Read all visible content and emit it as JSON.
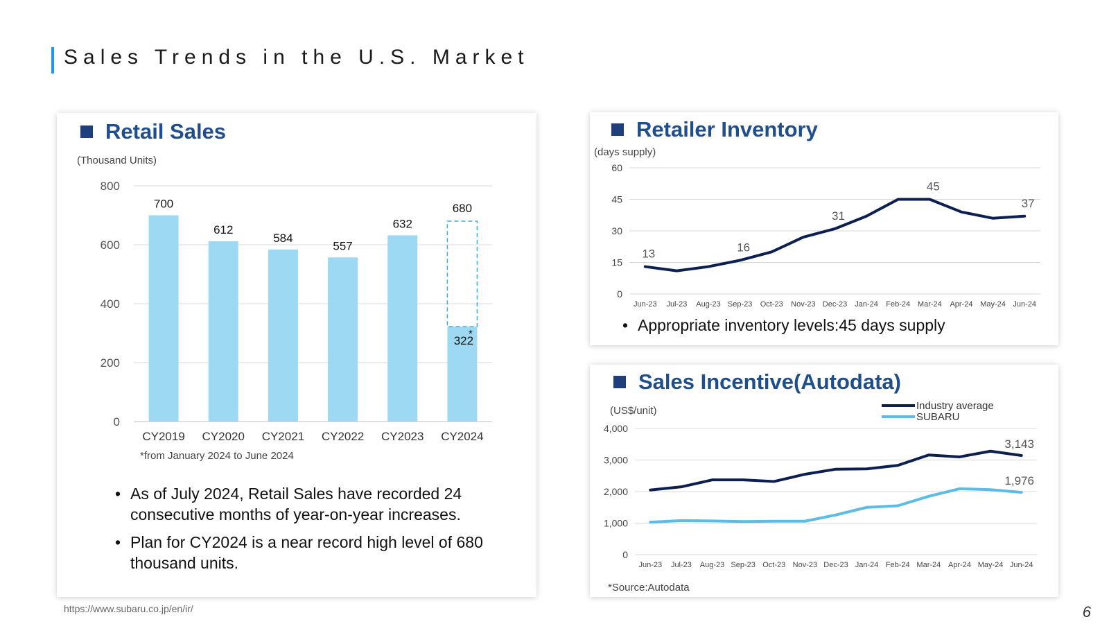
{
  "page": {
    "title": "Sales Trends in the U.S. Market",
    "footer_url": "https://www.subaru.co.jp/en/ir/",
    "page_number": "6"
  },
  "retail": {
    "title": "Retail Sales",
    "unit": "(Thousand Units)",
    "footnote": "*from January 2024 to June 2024",
    "bullets": [
      "As of July 2024, Retail Sales have recorded 24 consecutive months of year-on-year increases.",
      "Plan for CY2024 is a near record high level of 680 thousand units."
    ]
  },
  "inventory": {
    "title": "Retailer Inventory",
    "unit": "(days supply)",
    "bullet_label": "Appropriate inventory levels",
    "bullet_sep": ":",
    "bullet_value": "45 days supply"
  },
  "incentive": {
    "title": "Sales Incentive(Autodata)",
    "unit": "(US$/unit)",
    "source": "*Source:Autodata"
  },
  "colors": {
    "bar": "#9dd9f2",
    "plan_outline": "#3aaed8",
    "navy": "#0d1f4f",
    "light_blue": "#5bbde6",
    "title_blue": "#1f4e8c"
  },
  "chart_data": [
    {
      "type": "bar",
      "categories": [
        "CY2019",
        "CY2020",
        "CY2021",
        "CY2022",
        "CY2023",
        "CY2024"
      ],
      "values": [
        700,
        612,
        584,
        557,
        632,
        322
      ],
      "data_labels": [
        "700",
        "612",
        "584",
        "557",
        "632",
        "322"
      ],
      "plan": {
        "value": 680,
        "label": "680",
        "marker": "*"
      },
      "ylim": [
        0,
        800
      ],
      "yticks": [
        0,
        200,
        400,
        600,
        800
      ],
      "ytick_labels": [
        "0",
        "200",
        "400",
        "600",
        "800"
      ],
      "grid": true
    },
    {
      "type": "line",
      "x": [
        "Jun-23",
        "Jul-23",
        "Aug-23",
        "Sep-23",
        "Oct-23",
        "Nov-23",
        "Dec-23",
        "Jan-24",
        "Feb-24",
        "Mar-24",
        "Apr-24",
        "May-24",
        "Jun-24"
      ],
      "series": [
        {
          "values": [
            13,
            11,
            13,
            16,
            20,
            27,
            31,
            37,
            45,
            45,
            39,
            36,
            37
          ]
        }
      ],
      "point_labels": [
        {
          "index": 0,
          "text": "13"
        },
        {
          "index": 3,
          "text": "16"
        },
        {
          "index": 6,
          "text": "31"
        },
        {
          "index": 9,
          "text": "45"
        },
        {
          "index": 12,
          "text": "37"
        }
      ],
      "ylim": [
        0,
        60
      ],
      "yticks": [
        0,
        15,
        30,
        45,
        60
      ],
      "ytick_labels": [
        "0",
        "15",
        "30",
        "45",
        "60"
      ],
      "grid": true
    },
    {
      "type": "line",
      "x": [
        "Jun-23",
        "Jul-23",
        "Aug-23",
        "Sep-23",
        "Oct-23",
        "Nov-23",
        "Dec-23",
        "Jan-24",
        "Feb-24",
        "Mar-24",
        "Apr-24",
        "May-24",
        "Jun-24"
      ],
      "series": [
        {
          "name": "Industry average",
          "values": [
            2050,
            2150,
            2370,
            2370,
            2320,
            2550,
            2710,
            2720,
            2830,
            3160,
            3100,
            3280,
            3143
          ]
        },
        {
          "name": "SUBARU",
          "values": [
            1030,
            1080,
            1070,
            1050,
            1060,
            1060,
            1260,
            1500,
            1550,
            1850,
            2090,
            2060,
            1976
          ]
        }
      ],
      "end_labels": [
        "3,143",
        "1,976"
      ],
      "legend": "top-right",
      "ylim": [
        0,
        4000
      ],
      "yticks": [
        0,
        1000,
        2000,
        3000,
        4000
      ],
      "ytick_labels": [
        "0",
        "1,000",
        "2,000",
        "3,000",
        "4,000"
      ],
      "grid": true
    }
  ]
}
